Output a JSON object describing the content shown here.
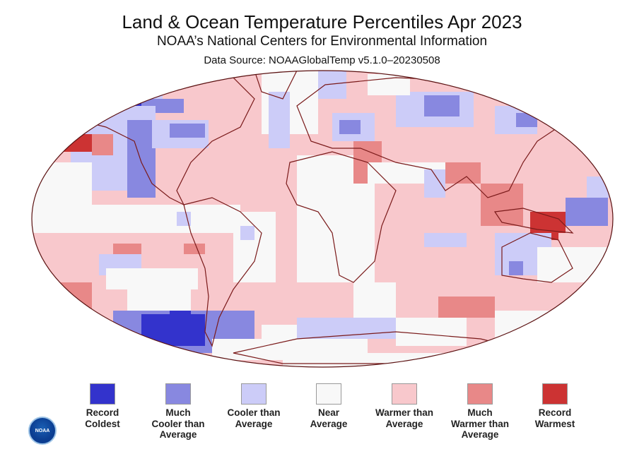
{
  "title": "Land & Ocean Temperature Percentiles Apr 2023",
  "subtitle": "NOAA’s National Centers for Environmental Information",
  "source": "Data Source: NOAAGlobalTemp v5.1.0–20230508",
  "logo_text": "NOAA",
  "legend": [
    {
      "label1": "Record",
      "label2": "Coldest",
      "label3": "",
      "color": "#3333cc"
    },
    {
      "label1": "Much",
      "label2": "Cooler than",
      "label3": "Average",
      "color": "#8888e0"
    },
    {
      "label1": "Cooler than",
      "label2": "Average",
      "label3": "",
      "color": "#ccccf8"
    },
    {
      "label1": "Near",
      "label2": "Average",
      "label3": "",
      "color": "#f8f8f8"
    },
    {
      "label1": "Warmer than",
      "label2": "Average",
      "label3": "",
      "color": "#f8c8cc"
    },
    {
      "label1": "Much",
      "label2": "Warmer than",
      "label3": "Average",
      "color": "#e88888"
    },
    {
      "label1": "Record",
      "label2": "Warmest",
      "label3": "",
      "color": "#cc3333"
    }
  ]
}
